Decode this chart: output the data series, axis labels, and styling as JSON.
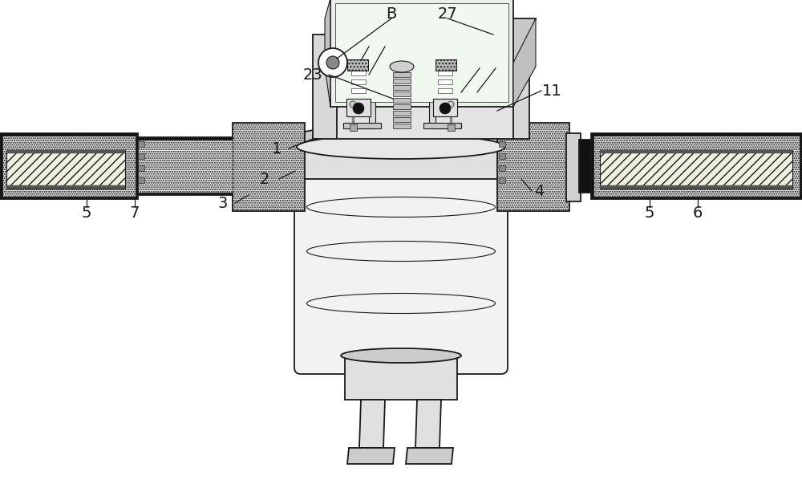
{
  "background_color": "#ffffff",
  "line_color": "#1a1a1a",
  "body_fc": "#f2f2f2",
  "body_fc2": "#e8e8e8",
  "gray_dark": "#aaaaaa",
  "gray_med": "#cccccc",
  "gray_light": "#e0e0e0",
  "screen_fc": "#e8f0e8",
  "dot_hatch_fc": "#d8d8d8",
  "figsize": [
    10.0,
    6.13
  ],
  "dpi": 100
}
